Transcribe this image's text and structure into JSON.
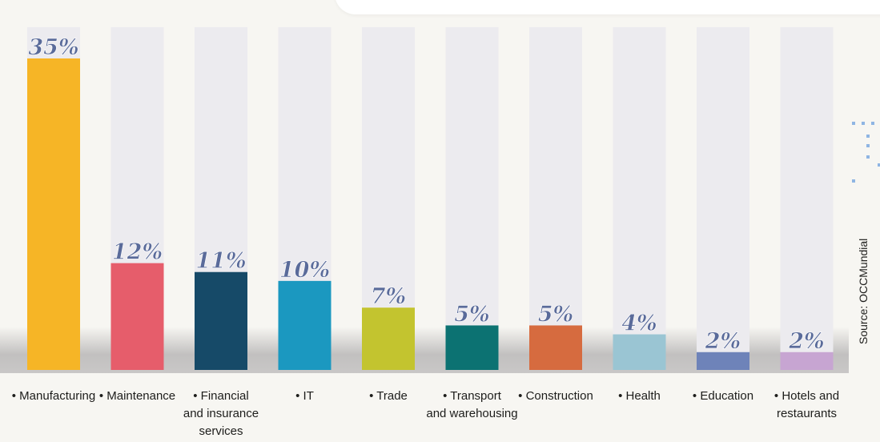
{
  "chart_data": {
    "type": "bar",
    "categories": [
      "• Manufacturing",
      "• Maintenance",
      "• Financial\nand insurance\nservices",
      "• IT",
      "• Trade",
      "• Transport\nand warehousing",
      "• Construction",
      "• Health",
      "• Education",
      "• Hotels and\nrestaurants"
    ],
    "values": [
      35,
      12,
      11,
      10,
      7,
      5,
      5,
      4,
      2,
      2
    ],
    "value_labels": [
      "35%",
      "12%",
      "11%",
      "10%",
      "7%",
      "5%",
      "5%",
      "4%",
      "2%",
      "2%"
    ],
    "colors": [
      "#f6b526",
      "#e65d6b",
      "#164a68",
      "#1b98c0",
      "#c3c42f",
      "#0c7272",
      "#d66b3f",
      "#9ac5d3",
      "#6e83b9",
      "#c7a5d2"
    ],
    "track_color": "#ecebef",
    "label_color": "#5a6b9a",
    "ylim": [
      0,
      38
    ],
    "grid": false,
    "legend": "none"
  },
  "source": "Source: OCCMundial"
}
